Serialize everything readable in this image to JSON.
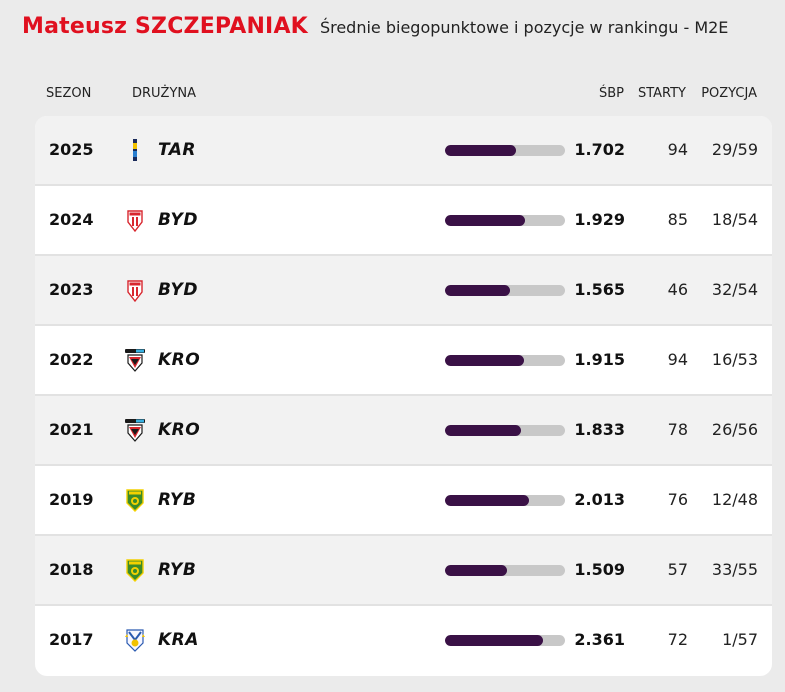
{
  "header": {
    "player_name": "Mateusz SZCZEPANIAK",
    "subtitle": "Średnie biegopunktowe i pozycje w rankingu - M2E"
  },
  "columns": {
    "season": "SEZON",
    "team": "DRUŻYNA",
    "avg": "ŚBP",
    "starts": "STARTY",
    "position": "POZYCJA"
  },
  "colors": {
    "bar_fill": "#3a1146",
    "bar_track": "#c8c8c8",
    "title_red": "#e0101f"
  },
  "rows": [
    {
      "season": "2025",
      "team": "TAR",
      "logo": "tar-logo-icon",
      "avg": "1.702",
      "bar_fraction": 0.59,
      "starts": "94",
      "position": "29/59"
    },
    {
      "season": "2024",
      "team": "BYD",
      "logo": "byd-logo-icon",
      "avg": "1.929",
      "bar_fraction": 0.67,
      "starts": "85",
      "position": "18/54"
    },
    {
      "season": "2023",
      "team": "BYD",
      "logo": "byd-logo-icon",
      "avg": "1.565",
      "bar_fraction": 0.54,
      "starts": "46",
      "position": "32/54"
    },
    {
      "season": "2022",
      "team": "KRO",
      "logo": "kro-logo-icon",
      "avg": "1.915",
      "bar_fraction": 0.66,
      "starts": "94",
      "position": "16/53"
    },
    {
      "season": "2021",
      "team": "KRO",
      "logo": "kro-logo-icon",
      "avg": "1.833",
      "bar_fraction": 0.63,
      "starts": "78",
      "position": "26/56"
    },
    {
      "season": "2019",
      "team": "RYB",
      "logo": "ryb-logo-icon",
      "avg": "2.013",
      "bar_fraction": 0.7,
      "starts": "76",
      "position": "12/48"
    },
    {
      "season": "2018",
      "team": "RYB",
      "logo": "ryb-logo-icon",
      "avg": "1.509",
      "bar_fraction": 0.52,
      "starts": "57",
      "position": "33/55"
    },
    {
      "season": "2017",
      "team": "KRA",
      "logo": "kra-logo-icon",
      "avg": "2.361",
      "bar_fraction": 0.82,
      "starts": "72",
      "position": "1/57"
    }
  ]
}
